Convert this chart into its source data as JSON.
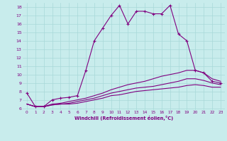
{
  "xlabel": "Windchill (Refroidissement éolien,°C)",
  "xlim": [
    -0.5,
    23.5
  ],
  "ylim": [
    5.8,
    18.5
  ],
  "yticks": [
    6,
    7,
    8,
    9,
    10,
    11,
    12,
    13,
    14,
    15,
    16,
    17,
    18
  ],
  "xticks": [
    0,
    1,
    2,
    3,
    4,
    5,
    6,
    7,
    8,
    9,
    10,
    11,
    12,
    13,
    14,
    15,
    16,
    17,
    18,
    19,
    20,
    21,
    22,
    23
  ],
  "background_color": "#c8ecec",
  "grid_color": "#a8d8d8",
  "line_color": "#800080",
  "lines": [
    {
      "x": [
        0,
        1,
        2,
        3,
        4,
        5,
        6,
        7,
        8,
        9,
        10,
        11,
        12,
        13,
        14,
        15,
        16,
        17,
        18,
        19,
        20,
        21,
        22,
        23
      ],
      "y": [
        7.8,
        6.2,
        6.2,
        7.0,
        7.2,
        7.3,
        7.5,
        10.5,
        14.0,
        15.5,
        17.0,
        18.2,
        16.0,
        17.5,
        17.5,
        17.2,
        17.2,
        18.2,
        14.8,
        14.0,
        10.5,
        10.2,
        9.2,
        9.0
      ],
      "marker": "+"
    },
    {
      "x": [
        0,
        1,
        2,
        3,
        4,
        5,
        6,
        7,
        8,
        9,
        10,
        11,
        12,
        13,
        14,
        15,
        16,
        17,
        18,
        19,
        20,
        21,
        22,
        23
      ],
      "y": [
        6.5,
        6.2,
        6.2,
        6.5,
        6.6,
        6.8,
        7.0,
        7.2,
        7.5,
        7.8,
        8.2,
        8.5,
        8.8,
        9.0,
        9.2,
        9.5,
        9.8,
        10.0,
        10.2,
        10.5,
        10.5,
        10.2,
        9.5,
        9.2
      ],
      "marker": null
    },
    {
      "x": [
        0,
        1,
        2,
        3,
        4,
        5,
        6,
        7,
        8,
        9,
        10,
        11,
        12,
        13,
        14,
        15,
        16,
        17,
        18,
        19,
        20,
        21,
        22,
        23
      ],
      "y": [
        6.5,
        6.2,
        6.2,
        6.4,
        6.5,
        6.6,
        6.8,
        7.0,
        7.2,
        7.5,
        7.8,
        8.0,
        8.2,
        8.4,
        8.5,
        8.6,
        8.8,
        9.0,
        9.2,
        9.5,
        9.5,
        9.3,
        9.0,
        8.8
      ],
      "marker": null
    },
    {
      "x": [
        0,
        1,
        2,
        3,
        4,
        5,
        6,
        7,
        8,
        9,
        10,
        11,
        12,
        13,
        14,
        15,
        16,
        17,
        18,
        19,
        20,
        21,
        22,
        23
      ],
      "y": [
        6.5,
        6.2,
        6.2,
        6.4,
        6.5,
        6.5,
        6.6,
        6.8,
        7.0,
        7.2,
        7.5,
        7.6,
        7.8,
        8.0,
        8.1,
        8.2,
        8.3,
        8.4,
        8.5,
        8.7,
        8.8,
        8.7,
        8.5,
        8.5
      ],
      "marker": null
    }
  ]
}
